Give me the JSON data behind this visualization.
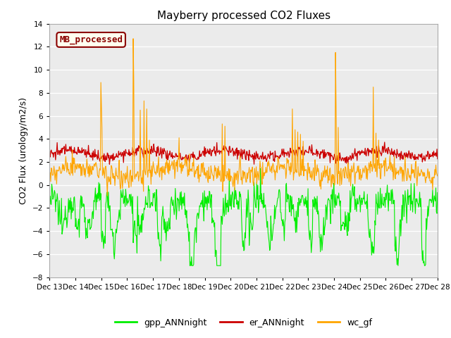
{
  "title": "Mayberry processed CO2 Fluxes",
  "ylabel": "CO2 Flux (urology/m2/s)",
  "ylim": [
    -8,
    14
  ],
  "yticks": [
    -8,
    -6,
    -4,
    -2,
    0,
    2,
    4,
    6,
    8,
    10,
    12,
    14
  ],
  "xtick_labels": [
    "Dec 13",
    "Dec 14",
    "Dec 15",
    "Dec 16",
    "Dec 17",
    "Dec 18",
    "Dec 19",
    "Dec 20",
    "Dec 21",
    "Dec 22",
    "Dec 23",
    "Dec 24",
    "Dec 25",
    "Dec 26",
    "Dec 27",
    "Dec 28"
  ],
  "legend_entries": [
    "gpp_ANNnight",
    "er_ANNnight",
    "wc_gf"
  ],
  "line_colors": [
    "#00ee00",
    "#cc0000",
    "#ffa500"
  ],
  "box_label": "MB_processed",
  "box_facecolor": "#fffff0",
  "box_edgecolor": "#8b0000",
  "box_textcolor": "#8b0000",
  "bg_color": "#ebebeb",
  "title_fontsize": 11,
  "axis_fontsize": 9,
  "tick_fontsize": 7.5,
  "legend_fontsize": 9,
  "n_points": 720,
  "random_seed": 12345
}
